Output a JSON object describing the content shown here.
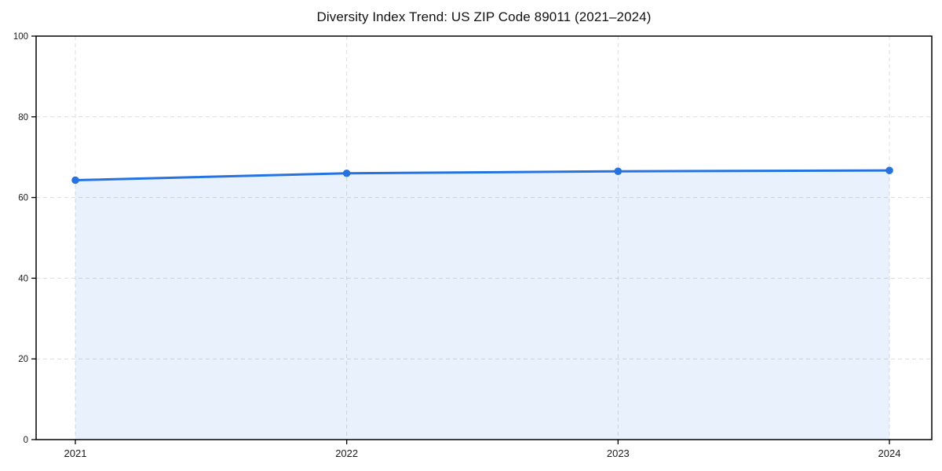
{
  "chart_data": {
    "type": "area",
    "title": "Diversity Index Trend: US ZIP Code 89011 (2021–2024)",
    "x": [
      "2021",
      "2022",
      "2023",
      "2024"
    ],
    "series": [
      {
        "name": "Diversity Index",
        "values": [
          64.3,
          66.0,
          66.5,
          66.7
        ]
      }
    ],
    "xlabel": "",
    "ylabel": "",
    "ylim": [
      0,
      100
    ],
    "yticks": [
      0,
      20,
      40,
      60,
      80,
      100
    ],
    "grid": true,
    "grid_style": "dashed",
    "legend": false,
    "colors": {
      "line": "#2573e0",
      "marker": "#2573e0",
      "fill": "rgba(37,115,224,0.10)",
      "grid": "#dcdcdc",
      "axis": "#000000",
      "tick_label": "#1a1a1a",
      "background": "#ffffff"
    }
  }
}
